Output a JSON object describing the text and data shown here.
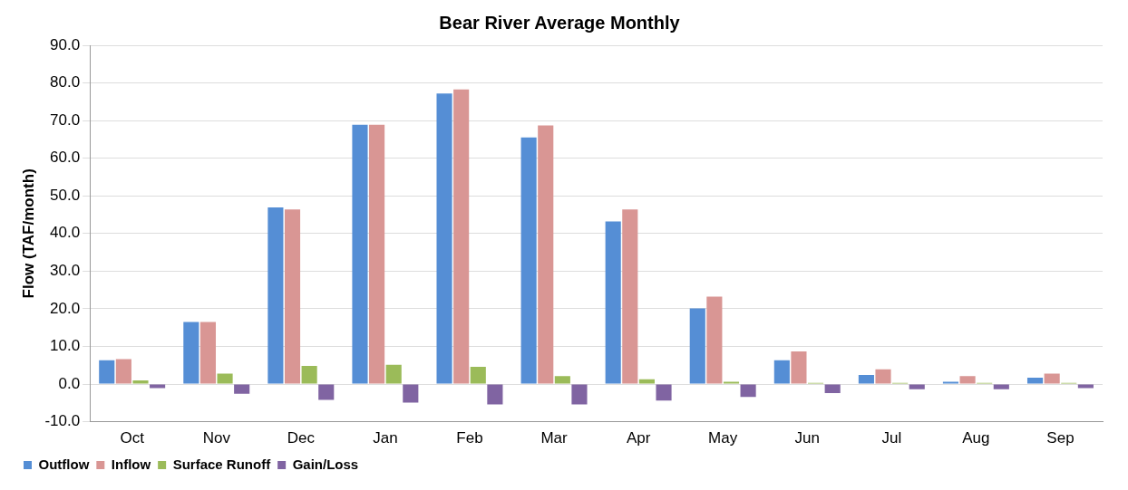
{
  "chart_data": {
    "type": "bar",
    "title": "Bear River Average Monthly",
    "ylabel": "Flow (TAF/month)",
    "categories": [
      "Oct",
      "Nov",
      "Dec",
      "Jan",
      "Feb",
      "Mar",
      "Apr",
      "May",
      "Jun",
      "Jul",
      "Aug",
      "Sep"
    ],
    "series": [
      {
        "name": "Outflow",
        "color": "#558ed5",
        "values": [
          6.3,
          16.5,
          46.9,
          68.9,
          77.2,
          65.5,
          43.2,
          20.1,
          6.3,
          2.4,
          0.6,
          1.7
        ]
      },
      {
        "name": "Inflow",
        "color": "#d99694",
        "values": [
          6.6,
          16.5,
          46.4,
          68.9,
          78.3,
          68.7,
          46.4,
          23.2,
          8.7,
          3.9,
          2.1,
          2.8
        ]
      },
      {
        "name": "Surface Runoff",
        "color": "#9bbb59",
        "values": [
          1.0,
          2.8,
          4.8,
          5.1,
          4.6,
          2.1,
          1.3,
          0.6,
          0.3,
          0.3,
          0.3,
          0.3
        ]
      },
      {
        "name": "Gain/Loss",
        "color": "#8064a2",
        "values": [
          -1.1,
          -2.6,
          -4.2,
          -4.9,
          -5.4,
          -5.4,
          -4.4,
          -3.4,
          -2.4,
          -1.4,
          -1.4,
          -1.1
        ]
      }
    ],
    "ylim": [
      -10,
      90
    ],
    "yticks": [
      {
        "value": -10,
        "label": "-10.0"
      },
      {
        "value": 0,
        "label": "0.0"
      },
      {
        "value": 10,
        "label": "10.0"
      },
      {
        "value": 20,
        "label": "20.0"
      },
      {
        "value": 30,
        "label": "30.0"
      },
      {
        "value": 40,
        "label": "40.0"
      },
      {
        "value": 50,
        "label": "50.0"
      },
      {
        "value": 60,
        "label": "60.0"
      },
      {
        "value": 70,
        "label": "70.0"
      },
      {
        "value": 80,
        "label": "80.0"
      },
      {
        "value": 90,
        "label": "90.0"
      }
    ],
    "grid": "y",
    "legend": "bottom left"
  }
}
